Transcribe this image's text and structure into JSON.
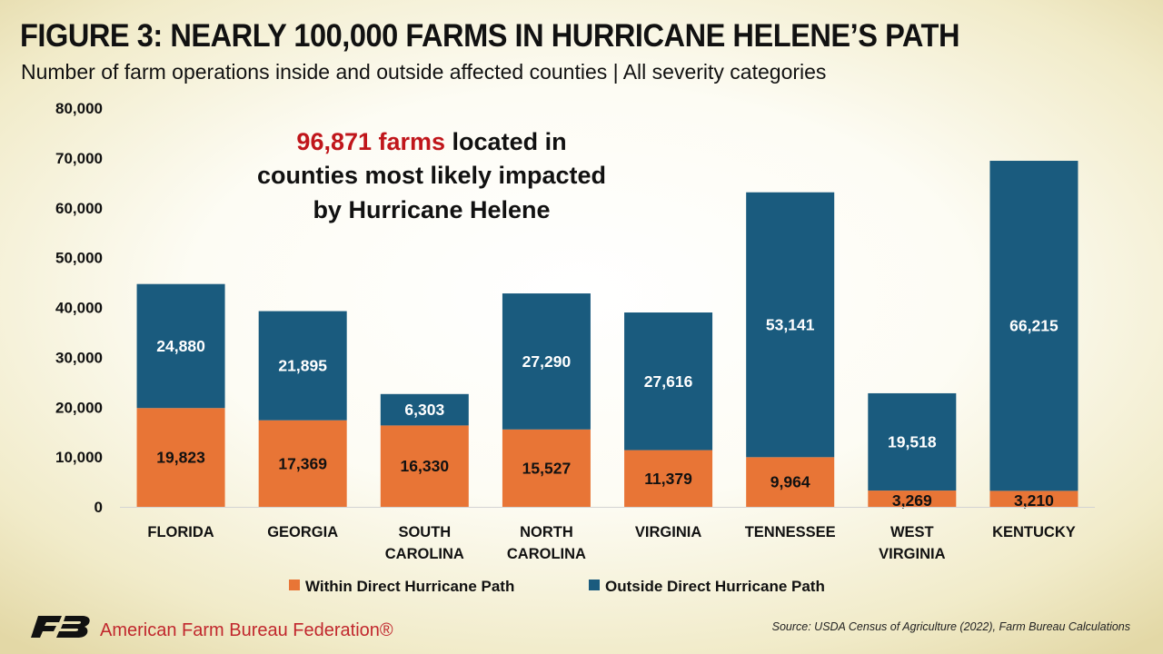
{
  "title": "FIGURE 3: NEARLY 100,000 FARMS IN HURRICANE HELENE’S PATH",
  "subtitle": "Number of farm operations inside and outside affected counties | All severity categories",
  "annotation": {
    "highlight": "96,871 farms",
    "line1_rest": " located in",
    "line2": "counties most likely impacted",
    "line3": "by Hurricane Helene"
  },
  "colors": {
    "within": "#e87536",
    "outside": "#1a5b7e",
    "highlight": "#c0161b",
    "brand": "#c1272d"
  },
  "chart_data": {
    "type": "bar",
    "stacked": true,
    "categories": [
      [
        "FLORIDA"
      ],
      [
        "GEORGIA"
      ],
      [
        "SOUTH",
        "CAROLINA"
      ],
      [
        "NORTH",
        "CAROLINA"
      ],
      [
        "VIRGINIA"
      ],
      [
        "TENNESSEE"
      ],
      [
        "WEST",
        "VIRGINIA"
      ],
      [
        "KENTUCKY"
      ]
    ],
    "series": [
      {
        "name": "Within Direct Hurricane Path",
        "values": [
          19823,
          17369,
          16330,
          15527,
          11379,
          9964,
          3269,
          3210
        ]
      },
      {
        "name": "Outside Direct Hurricane Path",
        "values": [
          24880,
          21895,
          6303,
          27290,
          27616,
          53141,
          19518,
          66215
        ]
      }
    ],
    "ylim": [
      0,
      80000
    ],
    "yticks": [
      0,
      10000,
      20000,
      30000,
      40000,
      50000,
      60000,
      70000,
      80000
    ],
    "grid": false,
    "legend_position": "bottom"
  },
  "footer": {
    "logo": "FB",
    "org": "American Farm Bureau Federation®",
    "source": "Source: USDA Census of Agriculture (2022), Farm Bureau Calculations"
  }
}
